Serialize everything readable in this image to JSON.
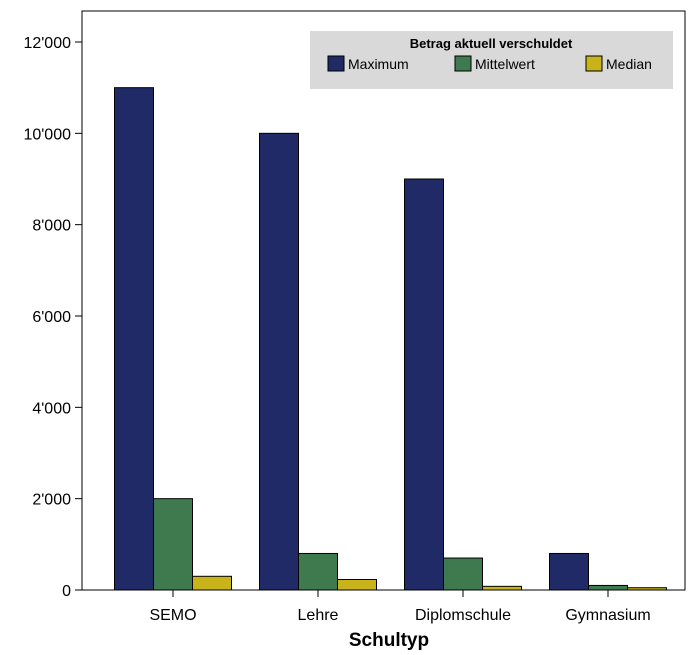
{
  "chart_data": {
    "type": "bar",
    "xlabel": "Schultyp",
    "ylabel": "",
    "categories": [
      "SEMO",
      "Lehre",
      "Diplomschule",
      "Gymnasium"
    ],
    "ylim": [
      0,
      12000
    ],
    "yticks": [
      {
        "value": 0,
        "label": "0"
      },
      {
        "value": 2000,
        "label": "2'000"
      },
      {
        "value": 4000,
        "label": "4'000"
      },
      {
        "value": 6000,
        "label": "6'000"
      },
      {
        "value": 8000,
        "label": "8'000"
      },
      {
        "value": 10000,
        "label": "10'000"
      },
      {
        "value": 12000,
        "label": "12'000"
      }
    ],
    "legend": {
      "title": "Betrag aktuell verschuldet",
      "placement": "top-right"
    },
    "grid": false,
    "series": [
      {
        "name": "Maximum",
        "color": "#1f2a66",
        "values": [
          11000,
          10000,
          9000,
          800
        ]
      },
      {
        "name": "Mittelwert",
        "color": "#3f7a4f",
        "values": [
          2000,
          800,
          700,
          100
        ]
      },
      {
        "name": "Median",
        "color": "#c8b41a",
        "values": [
          300,
          230,
          80,
          50
        ]
      }
    ],
    "colors": {
      "legend_background": "#d9d9d9",
      "bar_outline": "#000000"
    }
  }
}
